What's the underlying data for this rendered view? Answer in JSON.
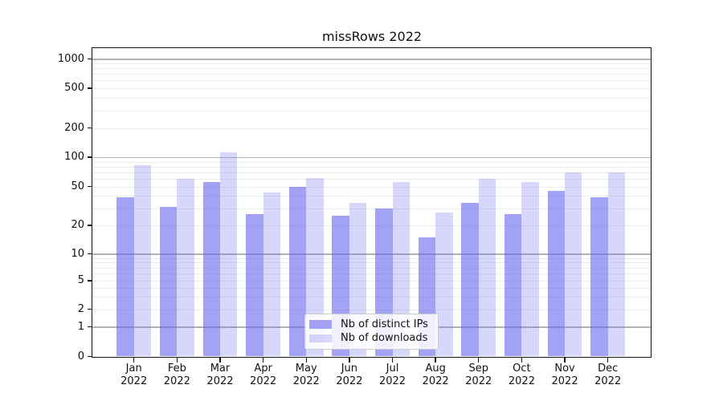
{
  "chart_data": {
    "type": "bar",
    "title": "missRows 2022",
    "year": "2022",
    "categories": [
      "Jan",
      "Feb",
      "Mar",
      "Apr",
      "May",
      "Jun",
      "Jul",
      "Aug",
      "Sep",
      "Oct",
      "Nov",
      "Dec"
    ],
    "series": [
      {
        "name": "Nb of distinct IPs",
        "color": "rgba(102,102,238,0.60)",
        "values": [
          39,
          31,
          55,
          26,
          50,
          25,
          30,
          15,
          34,
          26,
          45,
          39
        ]
      },
      {
        "name": "Nb of downloads",
        "color": "rgba(102,102,238,0.26)",
        "values": [
          82,
          60,
          113,
          43,
          61,
          34,
          55,
          27,
          60,
          55,
          70,
          70
        ]
      }
    ],
    "yticks": [
      "0",
      "1",
      "2",
      "5",
      "10",
      "20",
      "50",
      "100",
      "200",
      "500",
      "1000"
    ],
    "ytick_values": [
      0,
      1,
      2,
      5,
      10,
      20,
      50,
      100,
      200,
      500,
      1000
    ],
    "yaxis_scale": "symlog",
    "ylim": [
      0,
      1300
    ],
    "grid": "on",
    "legend_position": "lower center",
    "colors": {
      "bar_base": "#6666ee",
      "major_gridline": "#b2b2b2",
      "minor_gridline": "#ececec",
      "axis_spine": "#121212",
      "text": "#111111",
      "legend_border": "#cccccc"
    }
  }
}
